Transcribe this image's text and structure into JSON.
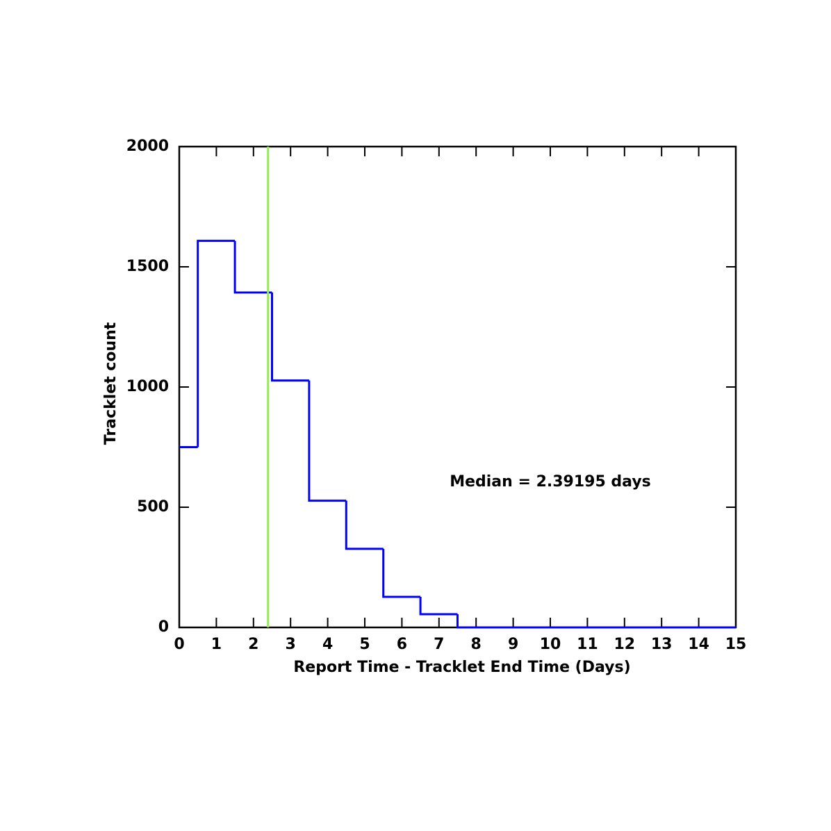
{
  "chart_data": {
    "type": "histogram",
    "x_label": "Report Time - Tracklet End Time (Days)",
    "y_label": "Tracklet count",
    "bins": [
      0,
      0.5,
      1.5,
      2.5,
      3.5,
      4.5,
      5.5,
      6.5,
      7.5,
      8.5,
      9.5,
      10.5,
      11.5,
      12.5,
      13.5,
      15
    ],
    "counts": [
      750,
      1608,
      1393,
      1027,
      527,
      327,
      127,
      55,
      0,
      0,
      0,
      0,
      0,
      0,
      0
    ],
    "color": "#0000ff",
    "median": 2.39195,
    "median_color": "#90ee50",
    "annotation": "Median = 2.39195 days",
    "xlim": [
      0,
      15
    ],
    "xticks": [
      0,
      1,
      2,
      3,
      4,
      5,
      6,
      7,
      8,
      9,
      10,
      11,
      12,
      13,
      14,
      15
    ],
    "ylim": [
      0,
      2000
    ],
    "yticks": [
      0,
      500,
      1000,
      1500,
      2000
    ]
  }
}
